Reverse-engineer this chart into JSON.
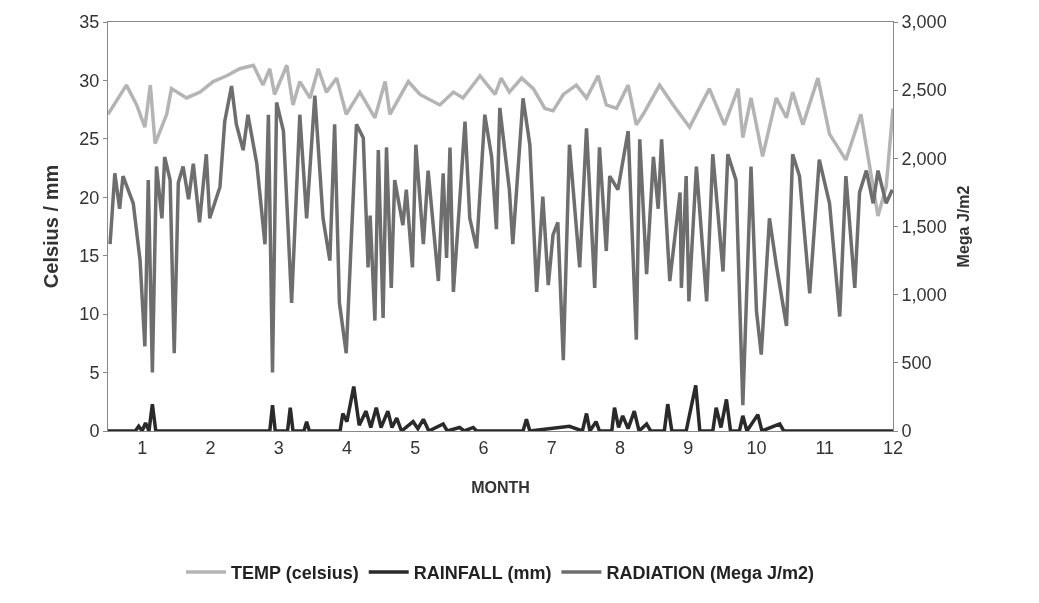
{
  "chart_data": {
    "type": "line",
    "xlabel": "MONTH",
    "ylabel": "Celsius / mm",
    "y2label": "Mega J/m2",
    "xlim": [
      0.5,
      12
    ],
    "xticks": [
      1,
      2,
      3,
      4,
      5,
      6,
      7,
      8,
      9,
      10,
      11,
      12
    ],
    "ylim": [
      0,
      35
    ],
    "yticks": [
      0,
      5,
      10,
      15,
      20,
      25,
      30,
      35
    ],
    "y2lim": [
      0,
      3000
    ],
    "y2ticks": [
      0,
      {
        "value": 500,
        "label": "500"
      },
      {
        "value": 1000,
        "label": "1,000"
      },
      {
        "value": 1500,
        "label": "1,500"
      },
      {
        "value": 2000,
        "label": "2,000"
      },
      {
        "value": 2500,
        "label": "2,500"
      },
      {
        "value": 3000,
        "label": "3,000"
      }
    ],
    "legend": "bottom",
    "marker": "none",
    "line_style": "solid",
    "series": [
      {
        "name": "TEMP (celsius)",
        "color": "#b4b4b4",
        "x": [
          0.5,
          0.77,
          0.92,
          1.04,
          1.12,
          1.19,
          1.36,
          1.43,
          1.65,
          1.85,
          2.04,
          2.24,
          2.43,
          2.63,
          2.77,
          2.87,
          2.94,
          3.12,
          3.21,
          3.31,
          3.46,
          3.58,
          3.7,
          3.85,
          3.99,
          4.19,
          4.41,
          4.56,
          4.63,
          4.9,
          5.07,
          5.36,
          5.56,
          5.7,
          5.95,
          6.17,
          6.26,
          6.38,
          6.56,
          6.73,
          6.9,
          7.02,
          7.17,
          7.36,
          7.51,
          7.68,
          7.8,
          7.95,
          8.12,
          8.24,
          8.34,
          8.58,
          8.78,
          9.02,
          9.31,
          9.53,
          9.73,
          9.8,
          9.92,
          10.09,
          10.29,
          10.44,
          10.53,
          10.68,
          10.9,
          11.07,
          11.31,
          11.53,
          11.78,
          11.9,
          12.0
        ],
        "values": [
          27.1,
          29.6,
          27.9,
          26.0,
          29.6,
          24.6,
          27.1,
          29.3,
          28.5,
          29.0,
          29.9,
          30.4,
          31.0,
          31.3,
          29.6,
          31.0,
          28.8,
          31.3,
          27.9,
          29.9,
          28.5,
          31.0,
          29.0,
          30.2,
          27.1,
          29.0,
          26.8,
          29.9,
          27.1,
          29.9,
          28.8,
          27.9,
          29.0,
          28.5,
          30.4,
          28.8,
          30.2,
          29.0,
          30.2,
          29.3,
          27.6,
          27.4,
          28.8,
          29.6,
          28.5,
          30.4,
          27.9,
          27.6,
          29.6,
          26.2,
          27.1,
          29.6,
          27.9,
          26.0,
          29.3,
          26.2,
          29.3,
          25.1,
          28.5,
          23.5,
          28.5,
          26.8,
          29.0,
          26.2,
          30.2,
          25.4,
          23.2,
          27.1,
          18.4,
          20.9,
          27.6
        ]
      },
      {
        "name": "RAINFALL (mm)",
        "color": "#2a2a2a",
        "x": [
          0.5,
          0.9,
          0.95,
          1.0,
          1.05,
          1.1,
          1.15,
          1.2,
          2.87,
          2.91,
          2.95,
          3.13,
          3.17,
          3.21,
          3.37,
          3.41,
          3.45,
          3.9,
          3.94,
          4.0,
          4.1,
          4.18,
          4.28,
          4.35,
          4.43,
          4.5,
          4.6,
          4.66,
          4.73,
          4.8,
          4.97,
          5.04,
          5.12,
          5.2,
          5.41,
          5.47,
          5.65,
          5.72,
          5.85,
          5.9,
          6.58,
          6.63,
          6.68,
          7.26,
          7.45,
          7.51,
          7.56,
          7.65,
          7.7,
          7.88,
          7.92,
          7.98,
          8.04,
          8.12,
          8.21,
          8.28,
          8.39,
          8.45,
          8.65,
          8.7,
          8.76,
          8.97,
          9.02,
          9.11,
          9.17,
          9.36,
          9.41,
          9.48,
          9.56,
          9.62,
          9.75,
          9.8,
          9.86,
          10.02,
          10.08,
          10.34,
          10.4,
          12.0
        ],
        "values": [
          0,
          0,
          0.4,
          0,
          0.7,
          0,
          2.3,
          0,
          0,
          2.2,
          0,
          0,
          2.0,
          0,
          0,
          0.8,
          0,
          0,
          1.5,
          0.8,
          3.8,
          0.5,
          1.7,
          0.3,
          2.0,
          0.3,
          1.7,
          0.3,
          1.1,
          0,
          0.8,
          0.2,
          1.0,
          0,
          0.6,
          0,
          0.3,
          0,
          0.3,
          0,
          0,
          1.0,
          0,
          0.4,
          0,
          1.5,
          0,
          0.8,
          0,
          0,
          2.0,
          0.3,
          1.3,
          0.2,
          1.7,
          0,
          0.6,
          0,
          0,
          2.3,
          0,
          0,
          1.4,
          3.9,
          0,
          0,
          2.0,
          0.3,
          2.7,
          0,
          0,
          1.3,
          0,
          1.4,
          0,
          0.6,
          0,
          0
        ]
      },
      {
        "name": "RADIATION (Mega J/m2)",
        "color": "#6e6e6e",
        "axis": "y2",
        "x": [
          0.53,
          0.6,
          0.67,
          0.72,
          0.87,
          0.97,
          1.04,
          1.09,
          1.15,
          1.21,
          1.29,
          1.33,
          1.41,
          1.47,
          1.53,
          1.6,
          1.68,
          1.75,
          1.84,
          1.94,
          1.99,
          2.14,
          2.21,
          2.31,
          2.38,
          2.48,
          2.55,
          2.68,
          2.8,
          2.85,
          2.91,
          2.97,
          3.07,
          3.19,
          3.31,
          3.41,
          3.53,
          3.65,
          3.75,
          3.82,
          3.89,
          3.99,
          4.14,
          4.24,
          4.31,
          4.34,
          4.41,
          4.46,
          4.53,
          4.58,
          4.65,
          4.7,
          4.82,
          4.87,
          4.96,
          5.01,
          5.12,
          5.19,
          5.34,
          5.41,
          5.46,
          5.51,
          5.56,
          5.65,
          5.73,
          5.8,
          5.9,
          6.02,
          6.12,
          6.19,
          6.24,
          6.38,
          6.43,
          6.58,
          6.68,
          6.78,
          6.87,
          6.95,
          7.02,
          7.09,
          7.17,
          7.26,
          7.41,
          7.51,
          7.63,
          7.7,
          7.8,
          7.85,
          7.97,
          8.12,
          8.24,
          8.29,
          8.39,
          8.49,
          8.56,
          8.61,
          8.73,
          8.88,
          8.9,
          8.97,
          9.01,
          9.12,
          9.27,
          9.36,
          9.51,
          9.58,
          9.7,
          9.8,
          9.92,
          10.0,
          10.07,
          10.19,
          10.29,
          10.44,
          10.53,
          10.63,
          10.78,
          10.92,
          11.07,
          11.22,
          11.31,
          11.44,
          11.51,
          11.61,
          11.71,
          11.78,
          11.9,
          11.99
        ],
        "values": [
          1370,
          1890,
          1630,
          1870,
          1670,
          1250,
          620,
          1840,
          430,
          1940,
          1560,
          2010,
          1840,
          570,
          1820,
          1940,
          1700,
          1960,
          1530,
          2030,
          1560,
          1790,
          2270,
          2530,
          2250,
          2060,
          2320,
          1960,
          1370,
          2320,
          430,
          2410,
          2200,
          940,
          2320,
          1560,
          2460,
          1560,
          1250,
          2250,
          940,
          570,
          2250,
          2150,
          1200,
          1580,
          810,
          2060,
          830,
          2080,
          1050,
          1840,
          1510,
          1770,
          1200,
          2100,
          1370,
          1910,
          1100,
          1890,
          1270,
          2080,
          1020,
          1670,
          2270,
          1560,
          1340,
          2320,
          2010,
          1480,
          2370,
          1770,
          1370,
          2440,
          2100,
          1020,
          1720,
          1070,
          1440,
          1530,
          520,
          2100,
          1200,
          2220,
          1050,
          2080,
          1320,
          1870,
          1770,
          2200,
          670,
          2140,
          1150,
          2010,
          1630,
          2140,
          1100,
          1750,
          1050,
          1870,
          950,
          1940,
          950,
          2030,
          1170,
          2030,
          1840,
          190,
          1940,
          880,
          560,
          1560,
          1220,
          770,
          2030,
          1870,
          1010,
          1990,
          1670,
          840,
          1870,
          1050,
          1750,
          1910,
          1670,
          1910,
          1670,
          1770
        ]
      }
    ]
  }
}
